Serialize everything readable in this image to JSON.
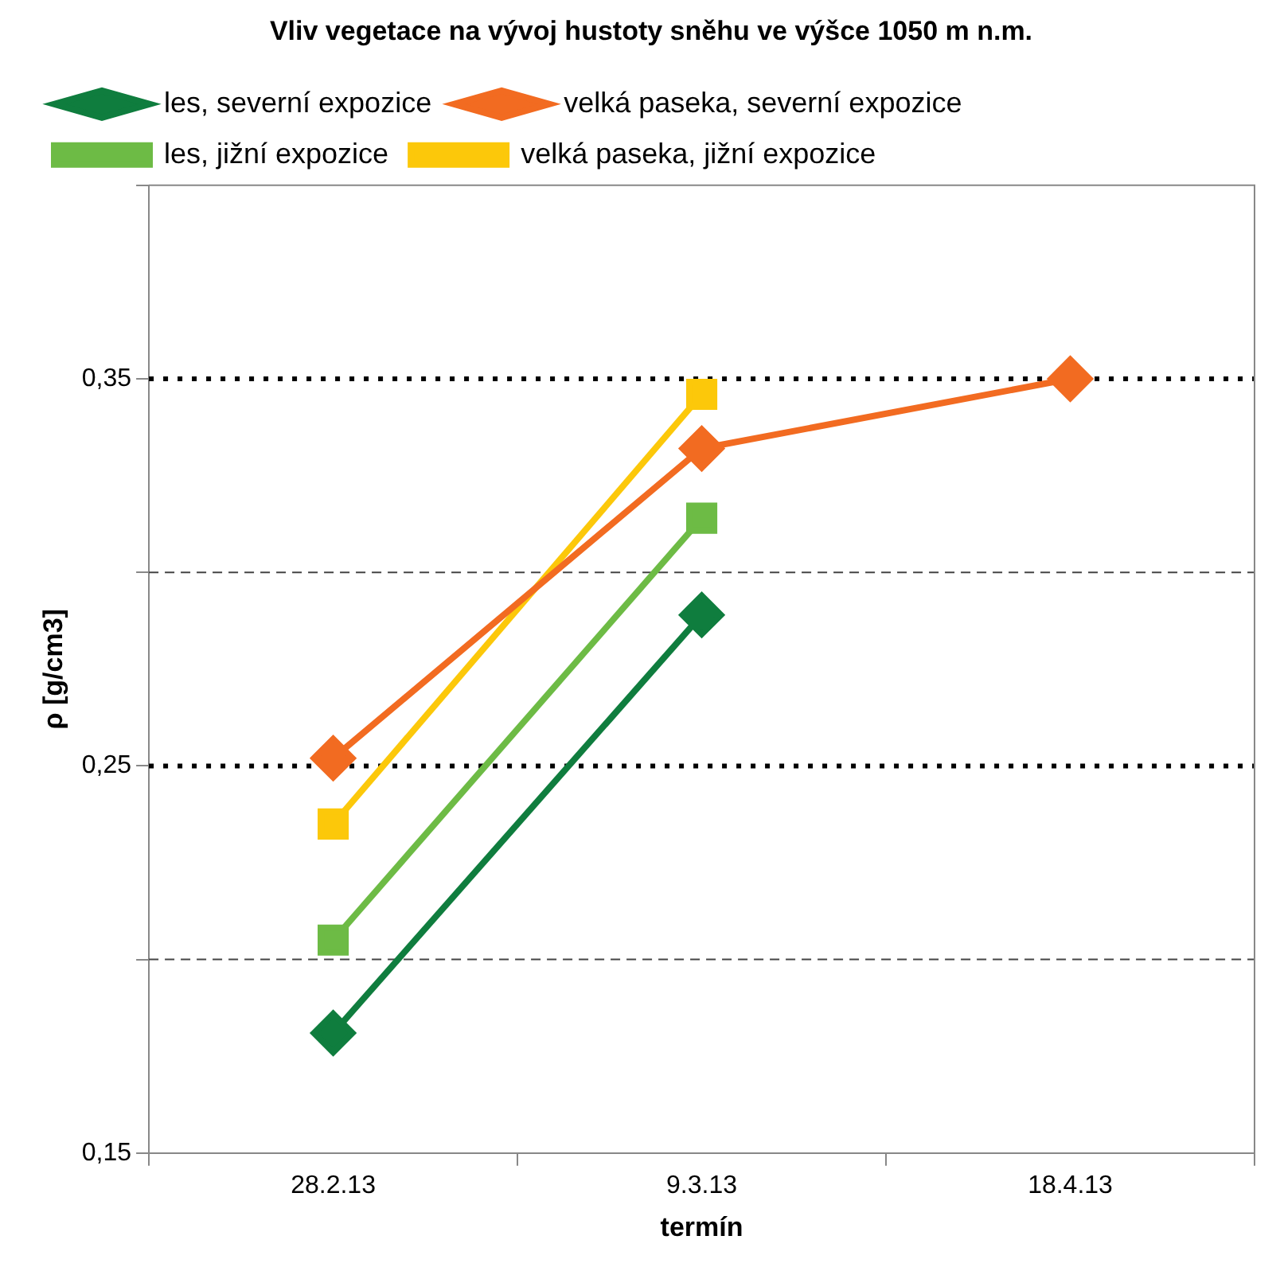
{
  "chart_data": {
    "type": "line",
    "title": "Vliv vegetace na vývoj hustoty sněhu ve výšce 1050 m n.m.",
    "xlabel": "termín",
    "ylabel": "ρ [g/cm3]",
    "categories": [
      "28.2.13",
      "9.3.13",
      "18.4.13"
    ],
    "series": [
      {
        "name": "les, severní expozice",
        "color": "#0f7d3e",
        "marker": "diamond",
        "values": [
          0.181,
          0.289,
          null
        ]
      },
      {
        "name": "velká paseka, severní expozice",
        "color": "#f26b21",
        "marker": "diamond",
        "values": [
          0.252,
          0.332,
          0.35
        ]
      },
      {
        "name": "les, jižní expozice",
        "color": "#6dbb45",
        "marker": "square",
        "values": [
          0.205,
          0.314,
          null
        ]
      },
      {
        "name": "velká paseka, jižní expozice",
        "color": "#fcc80a",
        "marker": "square",
        "values": [
          0.235,
          0.346,
          null
        ]
      }
    ],
    "ylim": [
      0.15,
      0.4
    ],
    "yticks": [
      {
        "value": 0.15,
        "label": "0,15"
      },
      {
        "value": 0.2,
        "label": null
      },
      {
        "value": 0.25,
        "label": "0,25"
      },
      {
        "value": 0.3,
        "label": null
      },
      {
        "value": 0.35,
        "label": "0,35"
      },
      {
        "value": 0.4,
        "label": null
      }
    ],
    "grid": "y",
    "legend": "top",
    "line_style": "solid"
  }
}
